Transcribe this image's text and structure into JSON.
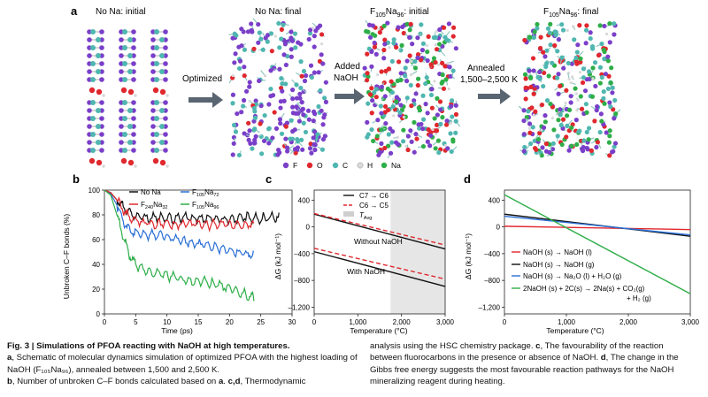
{
  "panel_a": {
    "label": "a",
    "titles": {
      "no_na_initial": "No Na: initial",
      "no_na_final": "No Na: final",
      "f_initial_prefix": "F",
      "f_initial_sub1": "105",
      "f_initial_mid": "Na",
      "f_initial_sub2": "96",
      "f_initial_suffix": ": initial",
      "f_final_suffix": ": final"
    },
    "arrows": {
      "optimized": "Optimized",
      "added_1": "Added",
      "added_2": "NaOH",
      "annealed_1": "Annealed",
      "annealed_2": "1,500–2,500 K"
    },
    "legend": [
      {
        "label": "F",
        "color": "#7a3fc9"
      },
      {
        "label": "O",
        "color": "#e0282e"
      },
      {
        "label": "C",
        "color": "#4fb6b0"
      },
      {
        "label": "H",
        "color": "#d8d8d8"
      },
      {
        "label": "Na",
        "color": "#2eae48"
      }
    ]
  },
  "chart_data": [
    {
      "panel": "b",
      "type": "line",
      "xlabel": "Time (ps)",
      "ylabel": "Unbroken C–F bonds (%)",
      "xlim": [
        0,
        30
      ],
      "ylim": [
        0,
        100
      ],
      "xticks": [
        0,
        5,
        10,
        15,
        20,
        25,
        30
      ],
      "yticks": [
        0,
        20,
        40,
        60,
        80,
        100
      ],
      "series": [
        {
          "name": "No Na",
          "color": "#111111",
          "x": [
            0,
            1,
            2,
            3,
            4,
            5,
            7,
            9,
            11,
            13,
            15,
            17,
            19,
            21,
            23,
            25,
            27,
            28
          ],
          "y": [
            100,
            98,
            92,
            86,
            82,
            78,
            77,
            78,
            77,
            78,
            77,
            78,
            76,
            77,
            78,
            77,
            78,
            78
          ]
        },
        {
          "name": "F105Na72",
          "name_base": "F",
          "sub1": "105",
          "mid": "Na",
          "sub2": "72",
          "color": "#2a6fd6",
          "x": [
            0,
            1,
            2,
            3,
            4,
            5,
            7,
            9,
            11,
            13,
            15,
            17,
            19,
            21,
            23,
            24
          ],
          "y": [
            100,
            97,
            88,
            76,
            68,
            66,
            64,
            63,
            62,
            58,
            57,
            54,
            52,
            50,
            48,
            47
          ]
        },
        {
          "name": "F240Na32",
          "name_base": "F",
          "sub1": "240",
          "mid": "Na",
          "sub2": "32",
          "color": "#e0282e",
          "x": [
            0,
            1,
            2,
            3,
            4,
            5,
            7,
            9,
            11,
            13,
            15,
            17,
            19,
            21,
            23,
            24
          ],
          "y": [
            100,
            98,
            92,
            84,
            78,
            75,
            73,
            73,
            72,
            73,
            72,
            72,
            73,
            72,
            72,
            72
          ]
        },
        {
          "name": "F105Na96",
          "name_base": "F",
          "sub1": "105",
          "mid": "Na",
          "sub2": "96",
          "color": "#2eae48",
          "x": [
            0,
            1,
            2,
            3,
            4,
            5,
            7,
            9,
            11,
            13,
            15,
            17,
            19,
            21,
            23,
            24
          ],
          "y": [
            100,
            96,
            80,
            62,
            48,
            40,
            34,
            32,
            30,
            28,
            26,
            25,
            22,
            18,
            15,
            12
          ]
        }
      ]
    },
    {
      "panel": "c",
      "type": "line",
      "xlabel": "Temperature (°C)",
      "ylabel": "ΔG (kJ mol⁻¹)",
      "xlim": [
        0,
        3000
      ],
      "ylim": [
        -1300,
        550
      ],
      "xticks": [
        0,
        1000,
        2000,
        3000
      ],
      "xticklabels": [
        "0",
        "1,000",
        "2,000",
        "3,000"
      ],
      "yticks": [
        400,
        0,
        -400,
        -800,
        -1200
      ],
      "yticklabels": [
        "400",
        "0",
        "–400",
        "–800",
        "–1,200"
      ],
      "shaded_from": 1750,
      "annotations": [
        "Without NaOH",
        "With NaOH"
      ],
      "legend": [
        {
          "label": "C7 → C6",
          "style": "solid",
          "color": "#111111"
        },
        {
          "label": "C6 → C5",
          "style": "dashed",
          "color": "#e0282e"
        },
        {
          "label": "T",
          "sub": "Avg",
          "style": "box",
          "color": "#cfcfcf"
        }
      ],
      "series": [
        {
          "name": "C7 → C6 without NaOH",
          "color": "#111111",
          "dash": false,
          "x": [
            0,
            3000
          ],
          "y": [
            190,
            -330
          ]
        },
        {
          "name": "C6 → C5 without NaOH",
          "color": "#e0282e",
          "dash": true,
          "x": [
            0,
            3000
          ],
          "y": [
            200,
            -270
          ]
        },
        {
          "name": "C7 → C6 with NaOH",
          "color": "#111111",
          "dash": false,
          "x": [
            0,
            3000
          ],
          "y": [
            -370,
            -890
          ]
        },
        {
          "name": "C6 → C5 with NaOH",
          "color": "#e0282e",
          "dash": true,
          "x": [
            0,
            3000
          ],
          "y": [
            -320,
            -780
          ]
        }
      ]
    },
    {
      "panel": "d",
      "type": "line",
      "xlabel": "Temperature (°C)",
      "ylabel": "ΔG (kJ mol⁻¹)",
      "xlim": [
        0,
        3000
      ],
      "ylim": [
        -1300,
        550
      ],
      "xticks": [
        0,
        1000,
        2000,
        3000
      ],
      "xticklabels": [
        "0",
        "1,000",
        "2,000",
        "3,000"
      ],
      "yticks": [
        400,
        0,
        -400,
        -800,
        -1200
      ],
      "yticklabels": [
        "400",
        "0",
        "–400",
        "–800",
        "–1,200"
      ],
      "legend_lines": [
        "NaOH (s) → NaOH (l)",
        "NaOH (s) → NaOH (g)",
        "NaOH (s) → Na₂O (l) + H₂O (g)",
        "2NaOH (s) + 2C(s) → 2Na(s) + CO₂(g)",
        "+ H₂ (g)"
      ],
      "series": [
        {
          "name": "NaOH (s) → NaOH (l)",
          "color": "#e0282e",
          "x": [
            0,
            3000
          ],
          "y": [
            10,
            -40
          ]
        },
        {
          "name": "NaOH (s) → NaOH (g)",
          "color": "#111111",
          "x": [
            0,
            3000
          ],
          "y": [
            190,
            -140
          ]
        },
        {
          "name": "NaOH (s) → Na2O (l) + H2O (g)",
          "color": "#2a6fd6",
          "x": [
            0,
            3000
          ],
          "y": [
            160,
            -120
          ]
        },
        {
          "name": "2NaOH (s) + 2C(s) → 2Na(s) + CO2(g) + H2 (g)",
          "color": "#2eae48",
          "x": [
            0,
            3000
          ],
          "y": [
            480,
            -1000
          ]
        }
      ]
    }
  ],
  "caption": {
    "title": "Fig. 3 | Simulations of PFOA reacting with NaOH at high temperatures.",
    "a_label": "a",
    "a_text": ", Schematic of molecular dynamics simulation of optimized PFOA with the highest loading of NaOH (F₁₀₅Na₉₆), annealed between 1,500 and 2,500 K.",
    "b_label": "b",
    "b_text": ", Number of unbroken C–F bonds calculated based on ",
    "b_a": "a",
    "b_tail": ". ",
    "cd_label": "c,d",
    "cd_text": ", Thermodynamic",
    "right_1": "analysis using the HSC chemistry package. ",
    "c_label": "c",
    "c_text": ", The favourability of the reaction between fluorocarbons in the presence or absence of NaOH. ",
    "d_label": "d",
    "d_text": ", The change in the Gibbs free energy suggests the most favourable reaction pathways for the NaOH mineralizing reagent during heating."
  }
}
